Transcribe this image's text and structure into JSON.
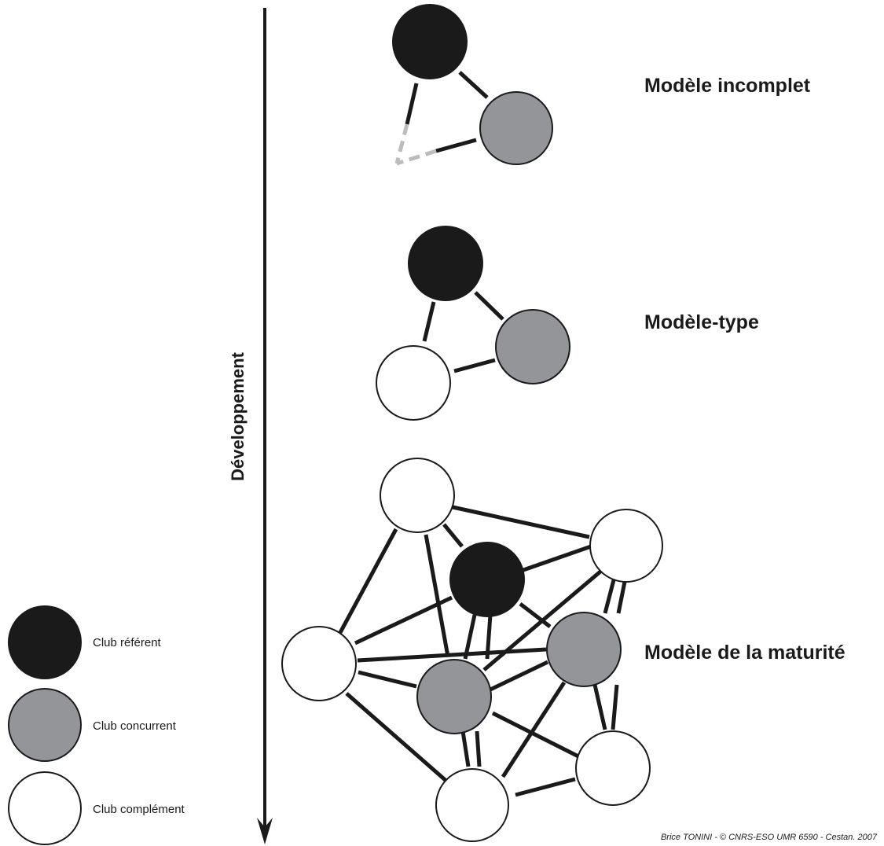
{
  "colors": {
    "referent": "#1a1a1a",
    "concurrent": "#939598",
    "complement": "#ffffff",
    "dashed_link": "#bcbcbc",
    "ink": "#1a1a1a"
  },
  "axis": {
    "label": "Développement",
    "direction": "down"
  },
  "models": [
    {
      "title": "Modèle incomplet"
    },
    {
      "title": "Modèle-type"
    },
    {
      "title": "Modèle de la maturité"
    }
  ],
  "legend": [
    {
      "label": "Club référent",
      "type": "referent"
    },
    {
      "label": "Club concurrent",
      "type": "concurrent"
    },
    {
      "label": "Club complément",
      "type": "complement"
    }
  ],
  "credit": "Brice TONINI - © CNRS-ESO UMR 6590 - Cestan. 2007"
}
